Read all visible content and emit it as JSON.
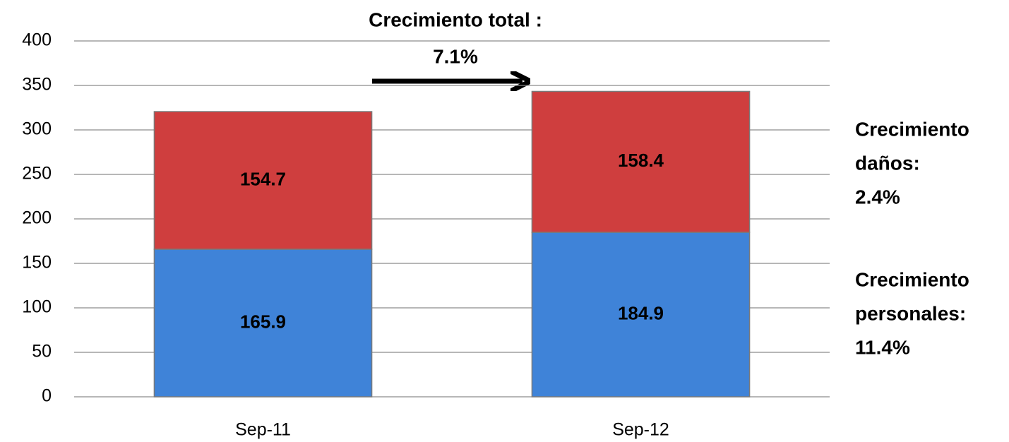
{
  "chart_data": {
    "type": "stacked_bar",
    "categories": [
      "Sep-11",
      "Sep-12"
    ],
    "series": [
      {
        "color": "#3f83d8",
        "values": [
          165.9,
          184.9
        ]
      },
      {
        "color": "#cf3e3e",
        "values": [
          154.7,
          158.4
        ]
      }
    ],
    "ylim": [
      0,
      400
    ],
    "yticks": [
      0,
      50,
      100,
      150,
      200,
      250,
      300,
      350,
      400
    ],
    "grid": true,
    "annotations": [
      {
        "lines": [
          "Crecimiento total :",
          "7.1%"
        ]
      },
      {
        "lines": [
          "Crecimiento",
          "daños:",
          "2.4%"
        ]
      },
      {
        "lines": [
          "Crecimiento",
          "personales:",
          "11.4%"
        ]
      }
    ]
  }
}
